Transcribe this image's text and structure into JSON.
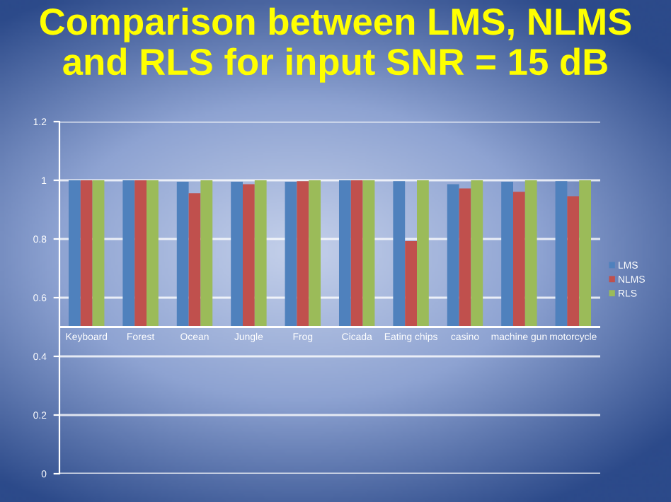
{
  "chart_data": {
    "type": "bar",
    "title": "Comparison between LMS, NLMS\nand RLS for input SNR = 15 dB",
    "categories": [
      "Keyboard",
      "Forest",
      "Ocean",
      "Jungle",
      "Frog",
      "Cicada",
      "Eating chips",
      "casino",
      "machine gun",
      "motorcycle"
    ],
    "series": [
      {
        "name": "LMS",
        "color": "#4f81bd",
        "base": [
          0.5,
          0.5,
          0.5,
          0.5,
          0.5,
          0.5,
          0.5,
          0.5,
          0.5,
          0.5
        ],
        "values": [
          0.5,
          0.5,
          0.495,
          0.495,
          0.495,
          0.5,
          0.497,
          0.487,
          0.495,
          0.497
        ]
      },
      {
        "name": "NLMS",
        "color": "#c0504d",
        "base": [
          0.5,
          0.5,
          0.5,
          0.5,
          0.5,
          0.5,
          0.5,
          0.5,
          0.5,
          0.5
        ],
        "values": [
          0.5,
          0.5,
          0.456,
          0.487,
          0.497,
          0.5,
          0.293,
          0.472,
          0.461,
          0.446
        ]
      },
      {
        "name": "RLS",
        "color": "#9bbb59",
        "base": [
          0.5,
          0.5,
          0.5,
          0.5,
          0.5,
          0.5,
          0.5,
          0.5,
          0.5,
          0.5
        ],
        "values": [
          0.5,
          0.5,
          0.5,
          0.5,
          0.5,
          0.5,
          0.5,
          0.5,
          0.5,
          0.5
        ]
      }
    ],
    "ylim": [
      0,
      1.2
    ],
    "yticks": [
      0,
      0.2,
      0.4,
      0.6,
      0.8,
      1,
      1.2
    ],
    "ref_lines": [
      {
        "axis": "y",
        "value": 0.5,
        "label": null,
        "color": "#ffffff"
      }
    ],
    "grid": "y",
    "legend": "right"
  }
}
